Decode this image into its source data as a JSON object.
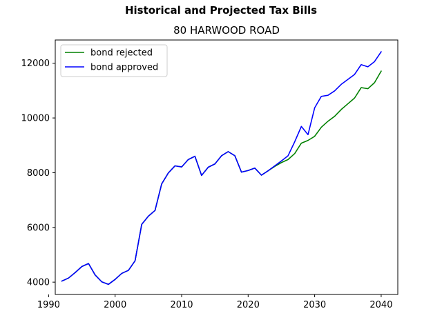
{
  "figure": {
    "suptitle": "Historical and Projected Tax Bills"
  },
  "chart_data": {
    "type": "line",
    "title": "80 HARWOOD ROAD",
    "xlabel": "",
    "ylabel": "",
    "xlim": [
      1991,
      2042.5
    ],
    "ylim": [
      3550,
      12850
    ],
    "xticks": [
      1990,
      2000,
      2010,
      2020,
      2030,
      2040
    ],
    "yticks": [
      4000,
      6000,
      8000,
      10000,
      12000
    ],
    "grid": false,
    "legend_position": "top-left",
    "series": [
      {
        "name": "bond rejected",
        "color": "#008000",
        "x": [
          1992,
          1993,
          1994,
          1995,
          1996,
          1997,
          1998,
          1999,
          2000,
          2001,
          2002,
          2003,
          2004,
          2005,
          2006,
          2007,
          2008,
          2009,
          2010,
          2011,
          2012,
          2013,
          2014,
          2015,
          2016,
          2017,
          2018,
          2019,
          2020,
          2021,
          2022,
          2023,
          2024,
          2025,
          2026,
          2027,
          2028,
          2029,
          2030,
          2031,
          2032,
          2033,
          2034,
          2035,
          2036,
          2037,
          2038,
          2039,
          2040
        ],
        "y": [
          4040,
          4150,
          4350,
          4570,
          4680,
          4260,
          4010,
          3920,
          4100,
          4320,
          4430,
          4780,
          6110,
          6410,
          6620,
          7590,
          7990,
          8250,
          8210,
          8480,
          8600,
          7900,
          8200,
          8320,
          8620,
          8770,
          8620,
          8020,
          8080,
          8170,
          7910,
          8070,
          8230,
          8370,
          8480,
          8700,
          9080,
          9180,
          9330,
          9660,
          9880,
          10060,
          10310,
          10520,
          10730,
          11110,
          11070,
          11290,
          11710
        ]
      },
      {
        "name": "bond approved",
        "color": "#0000ff",
        "x": [
          1992,
          1993,
          1994,
          1995,
          1996,
          1997,
          1998,
          1999,
          2000,
          2001,
          2002,
          2003,
          2004,
          2005,
          2006,
          2007,
          2008,
          2009,
          2010,
          2011,
          2012,
          2013,
          2014,
          2015,
          2016,
          2017,
          2018,
          2019,
          2020,
          2021,
          2022,
          2023,
          2024,
          2025,
          2026,
          2027,
          2028,
          2029,
          2030,
          2031,
          2032,
          2033,
          2034,
          2035,
          2036,
          2037,
          2038,
          2039,
          2040
        ],
        "y": [
          4040,
          4150,
          4350,
          4570,
          4680,
          4260,
          4010,
          3920,
          4100,
          4320,
          4430,
          4780,
          6110,
          6410,
          6620,
          7590,
          7990,
          8250,
          8210,
          8480,
          8600,
          7900,
          8200,
          8320,
          8620,
          8770,
          8620,
          8020,
          8080,
          8170,
          7910,
          8070,
          8250,
          8430,
          8620,
          9130,
          9690,
          9390,
          10370,
          10790,
          10830,
          10990,
          11230,
          11410,
          11590,
          11950,
          11870,
          12060,
          12420
        ]
      }
    ]
  }
}
